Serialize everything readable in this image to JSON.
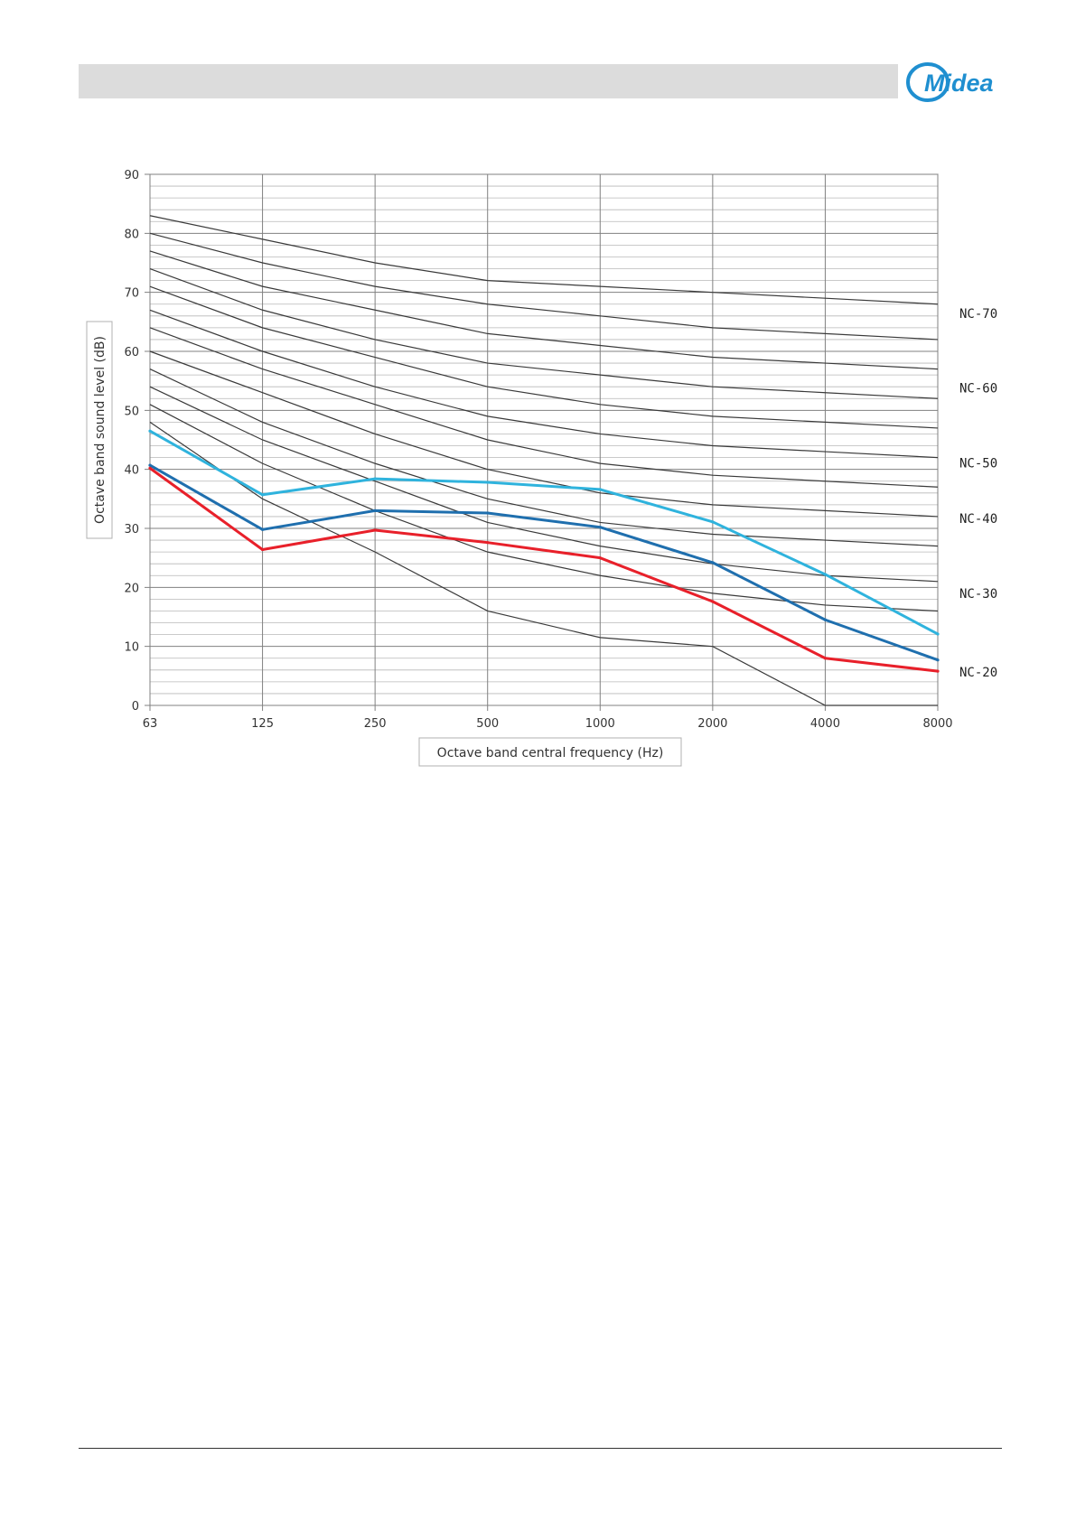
{
  "header": {
    "logo_text": "Midea",
    "logo_color": "#1f8fd0"
  },
  "chart_data": {
    "type": "line",
    "x": [
      "63",
      "125",
      "250",
      "500",
      "1000",
      "2000",
      "4000",
      "8000"
    ],
    "xlabel": "Octave band central frequency (Hz)",
    "ylabel": "Octave band sound level (dB)",
    "ylim": [
      0,
      90
    ],
    "yticks": [
      0,
      10,
      20,
      30,
      40,
      50,
      60,
      70,
      80,
      90
    ],
    "grid": true,
    "nc_curves": [
      {
        "values": [
          83,
          79,
          75,
          72,
          71,
          70,
          69,
          68
        ]
      },
      {
        "values": [
          80,
          75,
          71,
          68,
          66,
          64,
          63,
          62
        ]
      },
      {
        "values": [
          77,
          71,
          67,
          63,
          61,
          59,
          58,
          57
        ]
      },
      {
        "values": [
          74,
          67,
          62,
          58,
          56,
          54,
          53,
          52
        ]
      },
      {
        "values": [
          71,
          64,
          59,
          54,
          51,
          49,
          48,
          47
        ]
      },
      {
        "values": [
          67,
          60,
          54,
          49,
          46,
          44,
          43,
          42
        ]
      },
      {
        "values": [
          64,
          57,
          51,
          45,
          41,
          39,
          38,
          37
        ]
      },
      {
        "values": [
          60,
          53,
          46,
          40,
          36,
          34,
          33,
          32
        ]
      },
      {
        "values": [
          57,
          48,
          41,
          35,
          31,
          29,
          28,
          27
        ]
      },
      {
        "values": [
          54,
          45,
          38,
          31,
          27,
          24,
          22,
          21
        ]
      },
      {
        "values": [
          51,
          41,
          33,
          26,
          22,
          19,
          17,
          16
        ]
      },
      {
        "values": [
          48,
          35,
          26,
          16,
          11.5,
          10,
          0,
          0
        ]
      }
    ],
    "nc_labels": [
      {
        "text": "NC-70",
        "level": 66.4
      },
      {
        "text": "NC-60",
        "level": 53.8
      },
      {
        "text": "NC-50",
        "level": 41.1
      },
      {
        "text": "NC-40",
        "level": 31.7
      },
      {
        "text": "NC-30",
        "level": 19.0
      },
      {
        "text": "NC-20",
        "level": 5.7
      }
    ],
    "series": [
      {
        "color": "#2fb3dd",
        "values": [
          46.5,
          35.7,
          38.4,
          37.8,
          36.6,
          31.1,
          22.2,
          12.1
        ]
      },
      {
        "color": "#1f6fae",
        "values": [
          40.7,
          29.8,
          33.0,
          32.6,
          30.2,
          24.2,
          14.5,
          7.7
        ]
      },
      {
        "color": "#e8202a",
        "values": [
          40.2,
          26.4,
          29.7,
          27.6,
          25.0,
          17.6,
          8.0,
          5.8
        ]
      }
    ]
  }
}
